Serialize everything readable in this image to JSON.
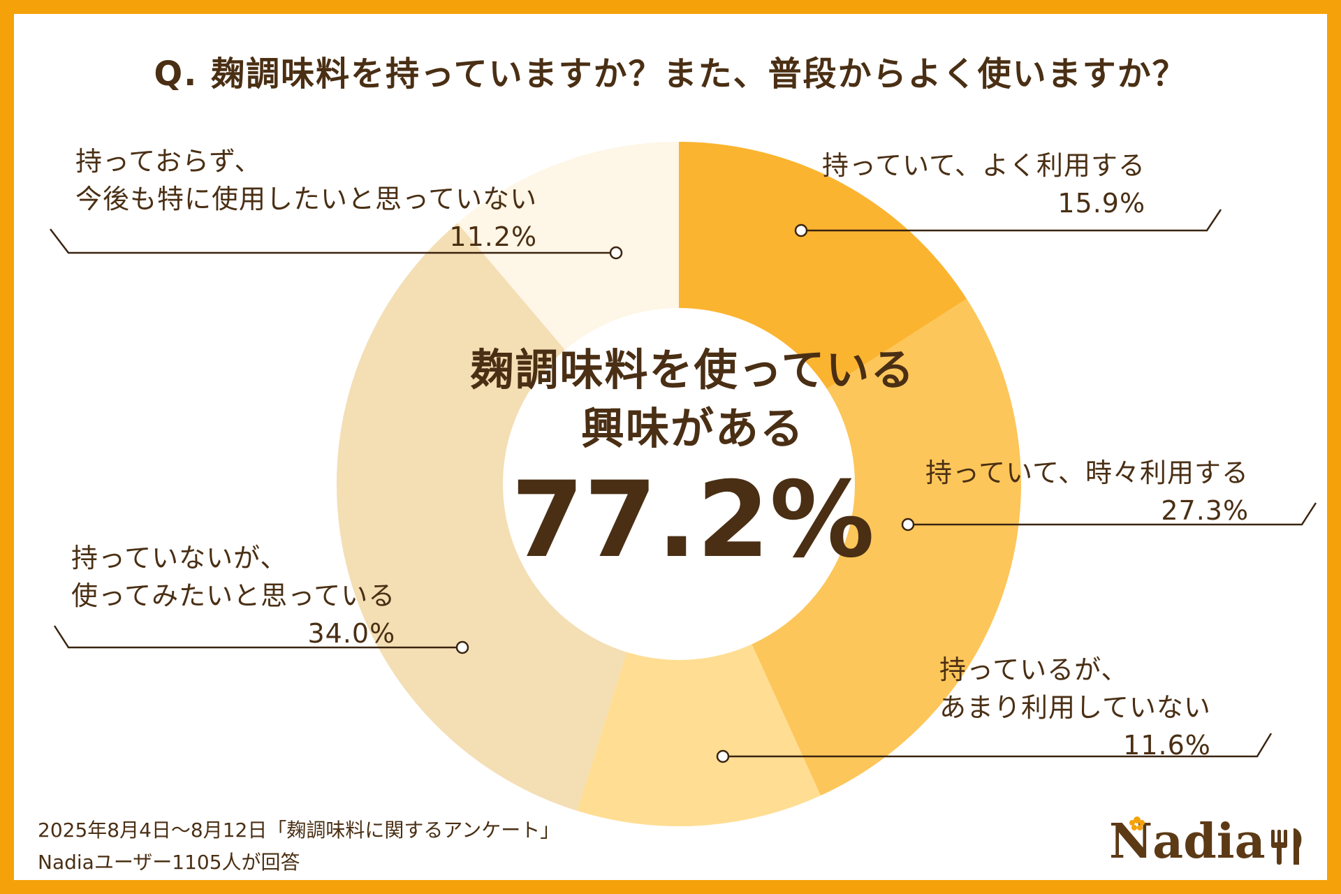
{
  "title": "Q. 麹調味料を持っていますか？また、普段からよく使いますか？",
  "center": {
    "line1": "麹調味料を使っている",
    "line2": "興味がある",
    "value": "77.2%"
  },
  "chart_data": {
    "type": "pie",
    "donut": true,
    "categories": [
      "持っていて、よく利用する",
      "持っていて、時々利用する",
      "持っているが、あまり利用していない",
      "持っていないが、使ってみたいと思っている",
      "持っておらず、今後も特に使用したいと思っていない"
    ],
    "values": [
      15.9,
      27.3,
      11.6,
      34.0,
      11.2
    ],
    "labels": [
      {
        "line1": "持っていて、よく利用する",
        "line2": "",
        "pct": "15.9%"
      },
      {
        "line1": "持っていて、時々利用する",
        "line2": "",
        "pct": "27.3%"
      },
      {
        "line1": "持っているが、",
        "line2": "あまり利用していない",
        "pct": "11.6%"
      },
      {
        "line1": "持っていないが、",
        "line2": "使ってみたいと思っている",
        "pct": "34.0%"
      },
      {
        "line1": "持っておらず、",
        "line2": "今後も特に使用したいと思っていない",
        "pct": "11.2%"
      }
    ],
    "colors": [
      "#FBB430",
      "#FDC65A",
      "#FFDD92",
      "#F4DEB4",
      "#FEF6E6"
    ],
    "legend": "none"
  },
  "footer": {
    "line1": "2025年8月4日～8月12日「麹調味料に関するアンケート」",
    "line2": "Nadiaユーザー1105人が回答"
  },
  "logo": {
    "text": "Nadia",
    "color": "#5C3A16",
    "accent": "#F5A20A"
  }
}
